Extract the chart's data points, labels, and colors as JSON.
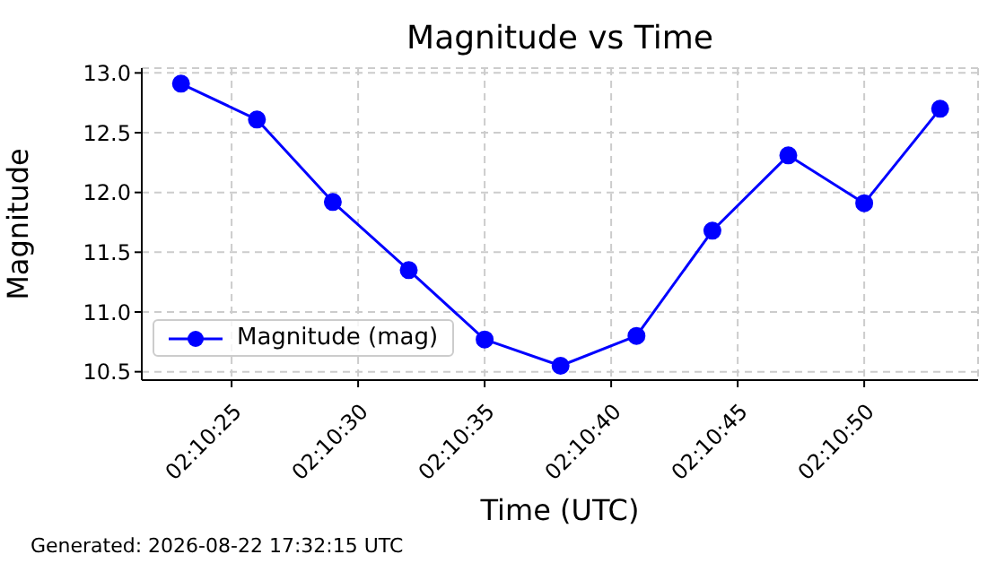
{
  "chart_data": {
    "type": "line",
    "title": "Magnitude vs Time",
    "xlabel": "Time (UTC)",
    "ylabel": "Magnitude",
    "x": [
      2.1730556,
      2.1738889,
      2.1747222,
      2.1755556,
      2.1763889,
      2.1772222,
      2.1780556,
      2.1788889,
      2.1797222,
      2.1805556,
      2.1813889
    ],
    "series": [
      {
        "name": "Magnitude (mag)",
        "color": "#0000ff",
        "values": [
          12.91,
          12.61,
          11.92,
          11.35,
          10.77,
          10.55,
          10.8,
          11.68,
          12.31,
          11.91,
          12.7
        ]
      }
    ],
    "xlim": [
      2.172625,
      2.1818056
    ],
    "xticks": [
      {
        "value": 2.1736111,
        "label": "02:10:25"
      },
      {
        "value": 2.175,
        "label": "02:10:30"
      },
      {
        "value": 2.1763889,
        "label": "02:10:35"
      },
      {
        "value": 2.1777778,
        "label": "02:10:40"
      },
      {
        "value": 2.1791667,
        "label": "02:10:45"
      },
      {
        "value": 2.1805556,
        "label": "02:10:50"
      }
    ],
    "ylim": [
      10.43,
      13.04
    ],
    "yticks": [
      {
        "value": 10.5,
        "label": "10.5"
      },
      {
        "value": 11,
        "label": "11.0"
      },
      {
        "value": 11.5,
        "label": "11.5"
      },
      {
        "value": 12,
        "label": "12.0"
      },
      {
        "value": 12.5,
        "label": "12.5"
      },
      {
        "value": 13,
        "label": "13.0"
      }
    ],
    "grid": true,
    "legend": "bottom left",
    "marker": "circle",
    "line_style": "solid",
    "annotations": [
      "Generated: 2026-08-22 17:32:15 UTC"
    ]
  }
}
